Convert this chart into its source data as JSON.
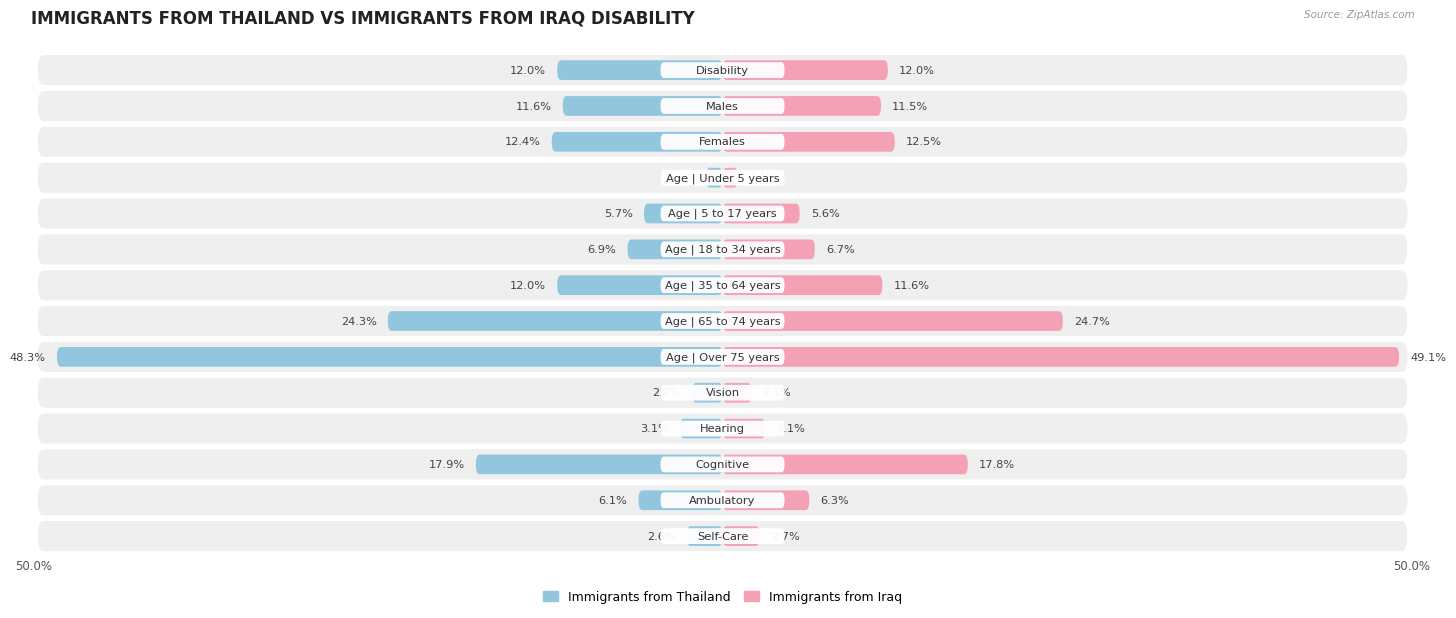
{
  "title": "IMMIGRANTS FROM THAILAND VS IMMIGRANTS FROM IRAQ DISABILITY",
  "source": "Source: ZipAtlas.com",
  "categories": [
    "Disability",
    "Males",
    "Females",
    "Age | Under 5 years",
    "Age | 5 to 17 years",
    "Age | 18 to 34 years",
    "Age | 35 to 64 years",
    "Age | 65 to 74 years",
    "Age | Over 75 years",
    "Vision",
    "Hearing",
    "Cognitive",
    "Ambulatory",
    "Self-Care"
  ],
  "thailand_values": [
    12.0,
    11.6,
    12.4,
    1.2,
    5.7,
    6.9,
    12.0,
    24.3,
    48.3,
    2.2,
    3.1,
    17.9,
    6.1,
    2.6
  ],
  "iraq_values": [
    12.0,
    11.5,
    12.5,
    1.1,
    5.6,
    6.7,
    11.6,
    24.7,
    49.1,
    2.1,
    3.1,
    17.8,
    6.3,
    2.7
  ],
  "thailand_color": "#92C5DE",
  "iraq_color": "#F4A0B5",
  "bar_height": 0.55,
  "max_val": 50.0,
  "row_bg_color": "#efefef",
  "row_bg_gap": "#ffffff",
  "title_fontsize": 12,
  "label_fontsize": 8.2,
  "category_fontsize": 8.2,
  "axis_label_fontsize": 8.5,
  "legend_fontsize": 9
}
